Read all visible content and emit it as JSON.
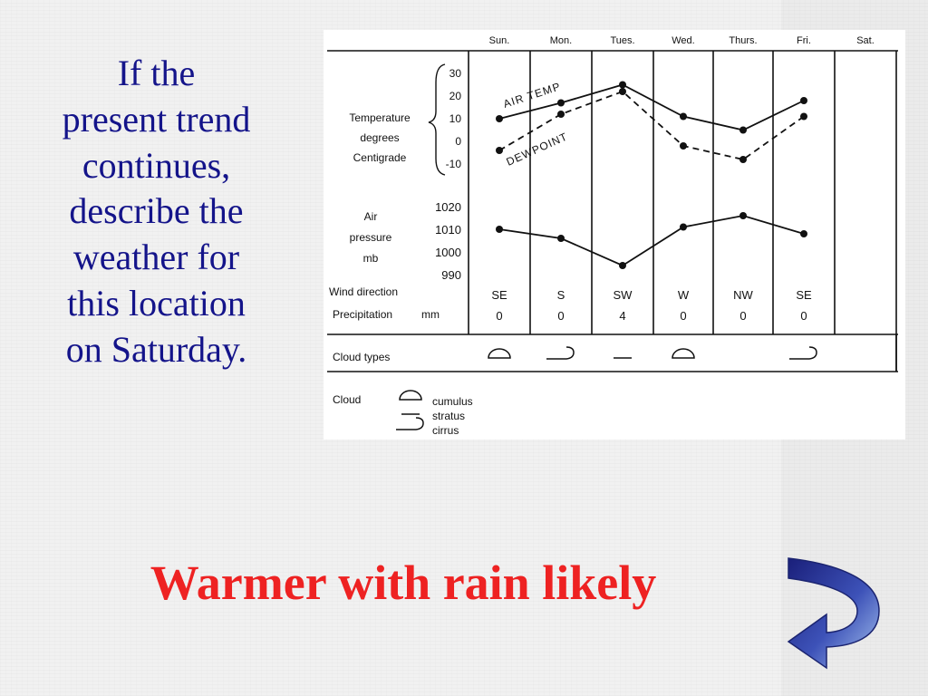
{
  "question": {
    "lines": [
      "If the",
      "present trend",
      "continues,",
      "describe the",
      "weather for",
      "this location",
      "on Saturday."
    ]
  },
  "answer": "Warmer with rain likely",
  "colors": {
    "question_text": "#14148a",
    "answer_text": "#ee2222",
    "arrow": "#1e2a8a"
  },
  "icons": {
    "return_arrow": "return-arrow-icon"
  },
  "chart_data": {
    "type": "line",
    "days": [
      "Sun.",
      "Mon.",
      "Tues.",
      "Wed.",
      "Thurs.",
      "Fri.",
      "Sat."
    ],
    "temperature": {
      "label": [
        "Temperature",
        "degrees",
        "Centigrade"
      ],
      "ticks": [
        "30",
        "20",
        "10",
        "0",
        "-10"
      ],
      "ylim": [
        -10,
        30
      ],
      "series": [
        {
          "name": "AIR TEMP",
          "style": "solid",
          "values": [
            10,
            17,
            25,
            11,
            5,
            18,
            null
          ]
        },
        {
          "name": "DEWPOINT",
          "style": "dashed",
          "values": [
            -4,
            12,
            22,
            -2,
            -8,
            11,
            null
          ]
        }
      ]
    },
    "pressure": {
      "label": [
        "Air",
        "pressure",
        "mb"
      ],
      "ticks": [
        "1020",
        "1010",
        "1000",
        "990"
      ],
      "ylim": [
        990,
        1020
      ],
      "values": [
        1010,
        1006,
        994,
        1011,
        1016,
        1008,
        null
      ]
    },
    "wind": {
      "label": "Wind direction",
      "values": [
        "SE",
        "S",
        "SW",
        "W",
        "NW",
        "SE",
        ""
      ]
    },
    "precipitation": {
      "label": "Precipitation",
      "unit": "mm",
      "values": [
        "0",
        "0",
        "4",
        "0",
        "0",
        "0",
        ""
      ]
    },
    "clouds": {
      "label": "Cloud  types",
      "values": [
        "cumulus",
        "cirrus",
        "stratus",
        "cumulus",
        "",
        "cirrus",
        ""
      ]
    },
    "legend": {
      "title": "Cloud",
      "items": [
        {
          "symbol": "cumulus",
          "label": "cumulus"
        },
        {
          "symbol": "stratus",
          "label": "stratus"
        },
        {
          "symbol": "cirrus",
          "label": "cirrus"
        }
      ]
    }
  }
}
